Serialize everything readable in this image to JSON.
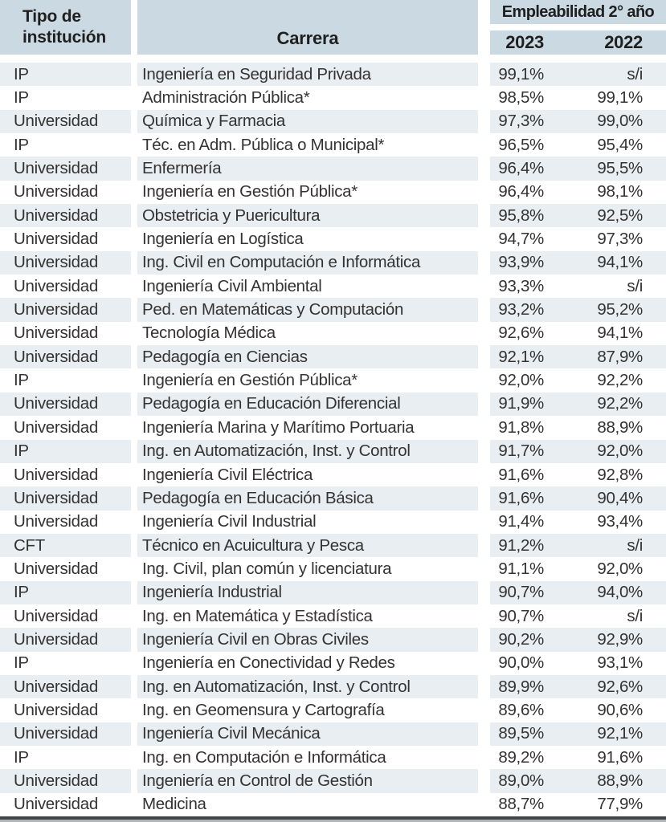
{
  "header": {
    "col_institution": "Tipo de institución",
    "col_career": "Carrera",
    "group_label": "Empleabilidad 2° año",
    "col_2023": "2023",
    "col_2022": "2022"
  },
  "colors": {
    "header_bg": "#cbdae2",
    "row_alt_bg": "#e8eef1",
    "row_bg": "#ffffff",
    "bottom_rule": "#40464d",
    "text": "#333333"
  },
  "chart_data": {
    "type": "table",
    "title": "",
    "columns": [
      "Tipo de institución",
      "Carrera",
      "2023",
      "2022"
    ],
    "column_group": {
      "label": "Empleabilidad 2° año",
      "spans": [
        "2023",
        "2022"
      ]
    },
    "rows": [
      {
        "tipo": "IP",
        "carrera": "Ingeniería en Seguridad Privada",
        "y2023": "99,1%",
        "y2022": "s/i"
      },
      {
        "tipo": "IP",
        "carrera": "Administración Pública*",
        "y2023": "98,5%",
        "y2022": "99,1%"
      },
      {
        "tipo": "Universidad",
        "carrera": "Química y Farmacia",
        "y2023": "97,3%",
        "y2022": "99,0%"
      },
      {
        "tipo": "IP",
        "carrera": "Téc. en Adm. Pública o Municipal*",
        "y2023": "96,5%",
        "y2022": "95,4%"
      },
      {
        "tipo": "Universidad",
        "carrera": "Enfermería",
        "y2023": "96,4%",
        "y2022": "95,5%"
      },
      {
        "tipo": "Universidad",
        "carrera": "Ingeniería en Gestión Pública*",
        "y2023": "96,4%",
        "y2022": "98,1%"
      },
      {
        "tipo": "Universidad",
        "carrera": "Obstetricia y Puericultura",
        "y2023": "95,8%",
        "y2022": "92,5%"
      },
      {
        "tipo": "Universidad",
        "carrera": "Ingeniería en Logística",
        "y2023": "94,7%",
        "y2022": "97,3%"
      },
      {
        "tipo": "Universidad",
        "carrera": "Ing. Civil en Computación e Informática",
        "y2023": "93,9%",
        "y2022": "94,1%"
      },
      {
        "tipo": "Universidad",
        "carrera": "Ingeniería Civil Ambiental",
        "y2023": "93,3%",
        "y2022": "s/i"
      },
      {
        "tipo": "Universidad",
        "carrera": "Ped. en Matemáticas y Computación",
        "y2023": "93,2%",
        "y2022": "95,2%"
      },
      {
        "tipo": "Universidad",
        "carrera": "Tecnología Médica",
        "y2023": "92,6%",
        "y2022": "94,1%"
      },
      {
        "tipo": "Universidad",
        "carrera": "Pedagogía en Ciencias",
        "y2023": "92,1%",
        "y2022": "87,9%"
      },
      {
        "tipo": "IP",
        "carrera": "Ingeniería en Gestión Pública*",
        "y2023": "92,0%",
        "y2022": "92,2%"
      },
      {
        "tipo": "Universidad",
        "carrera": "Pedagogía en Educación Diferencial",
        "y2023": "91,9%",
        "y2022": "92,2%"
      },
      {
        "tipo": "Universidad",
        "carrera": "Ingeniería Marina y Marítimo Portuaria",
        "y2023": "91,8%",
        "y2022": "88,9%"
      },
      {
        "tipo": "IP",
        "carrera": "Ing. en Automatización, Inst. y Control",
        "y2023": "91,7%",
        "y2022": "92,0%"
      },
      {
        "tipo": "Universidad",
        "carrera": "Ingeniería Civil Eléctrica",
        "y2023": "91,6%",
        "y2022": "92,8%"
      },
      {
        "tipo": "Universidad",
        "carrera": "Pedagogía en Educación Básica",
        "y2023": "91,6%",
        "y2022": "90,4%"
      },
      {
        "tipo": "Universidad",
        "carrera": "Ingeniería Civil Industrial",
        "y2023": "91,4%",
        "y2022": "93,4%"
      },
      {
        "tipo": "CFT",
        "carrera": "Técnico en Acuicultura y Pesca",
        "y2023": "91,2%",
        "y2022": "s/i"
      },
      {
        "tipo": "Universidad",
        "carrera": "Ing. Civil, plan común y licenciatura",
        "y2023": "91,1%",
        "y2022": "92,0%"
      },
      {
        "tipo": "IP",
        "carrera": "Ingeniería Industrial",
        "y2023": "90,7%",
        "y2022": "94,0%"
      },
      {
        "tipo": "Universidad",
        "carrera": "Ing. en Matemática y Estadística",
        "y2023": "90,7%",
        "y2022": "s/i"
      },
      {
        "tipo": "Universidad",
        "carrera": "Ingeniería Civil en Obras Civiles",
        "y2023": "90,2%",
        "y2022": "92,9%"
      },
      {
        "tipo": "IP",
        "carrera": "Ingeniería en Conectividad y Redes",
        "y2023": "90,0%",
        "y2022": "93,1%"
      },
      {
        "tipo": "Universidad",
        "carrera": "Ing. en Automatización, Inst. y Control",
        "y2023": "89,9%",
        "y2022": "92,6%"
      },
      {
        "tipo": "Universidad",
        "carrera": "Ing. en Geomensura y Cartografía",
        "y2023": "89,6%",
        "y2022": "90,6%"
      },
      {
        "tipo": "Universidad",
        "carrera": "Ingeniería Civil Mecánica",
        "y2023": "89,5%",
        "y2022": "92,1%"
      },
      {
        "tipo": "IP",
        "carrera": "Ing. en Computación e Informática",
        "y2023": "89,2%",
        "y2022": "91,6%"
      },
      {
        "tipo": "Universidad",
        "carrera": "Ingeniería en Control de Gestión",
        "y2023": "89,0%",
        "y2022": "88,9%"
      },
      {
        "tipo": "Universidad",
        "carrera": "Medicina",
        "y2023": "88,7%",
        "y2022": "77,9%"
      }
    ]
  }
}
